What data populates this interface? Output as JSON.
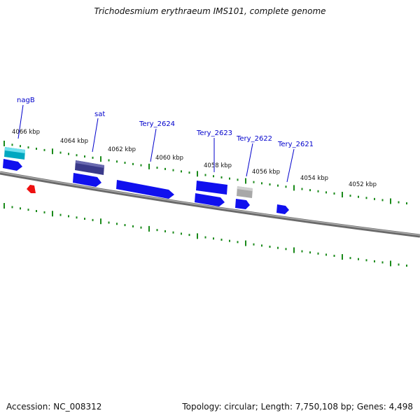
{
  "title": "Trichodesmium erythraeum IMS101, complete genome",
  "footer": {
    "accession": "Accession: NC_008312",
    "topology": "Topology: circular; Length: 7,750,108 bp; Genes: 4,498"
  },
  "ticks": [
    "4066 kbp",
    "4064 kbp",
    "4062 kbp",
    "4060 kbp",
    "4058 kbp",
    "4056 kbp",
    "4054 kbp",
    "4052 kbp"
  ],
  "genes": [
    {
      "name": "nagB",
      "color": "#00a0b0"
    },
    {
      "name": "sat",
      "color": "#3a3a8a"
    },
    {
      "name": "Tery_2624",
      "color": "#1010ee"
    },
    {
      "name": "Tery_2623",
      "color": "#1010ee"
    },
    {
      "name": "Tery_2622",
      "color": "#a0a0a0"
    },
    {
      "name": "Tery_2621",
      "color": "#1010ee"
    }
  ],
  "colors": {
    "backbone": "#808080",
    "tick": "#1a8a1a",
    "label": "#0000cc",
    "gene_forward": "#1010ee",
    "gene_unknown": "#a0a0a0",
    "gene_red": "#ee1010"
  }
}
